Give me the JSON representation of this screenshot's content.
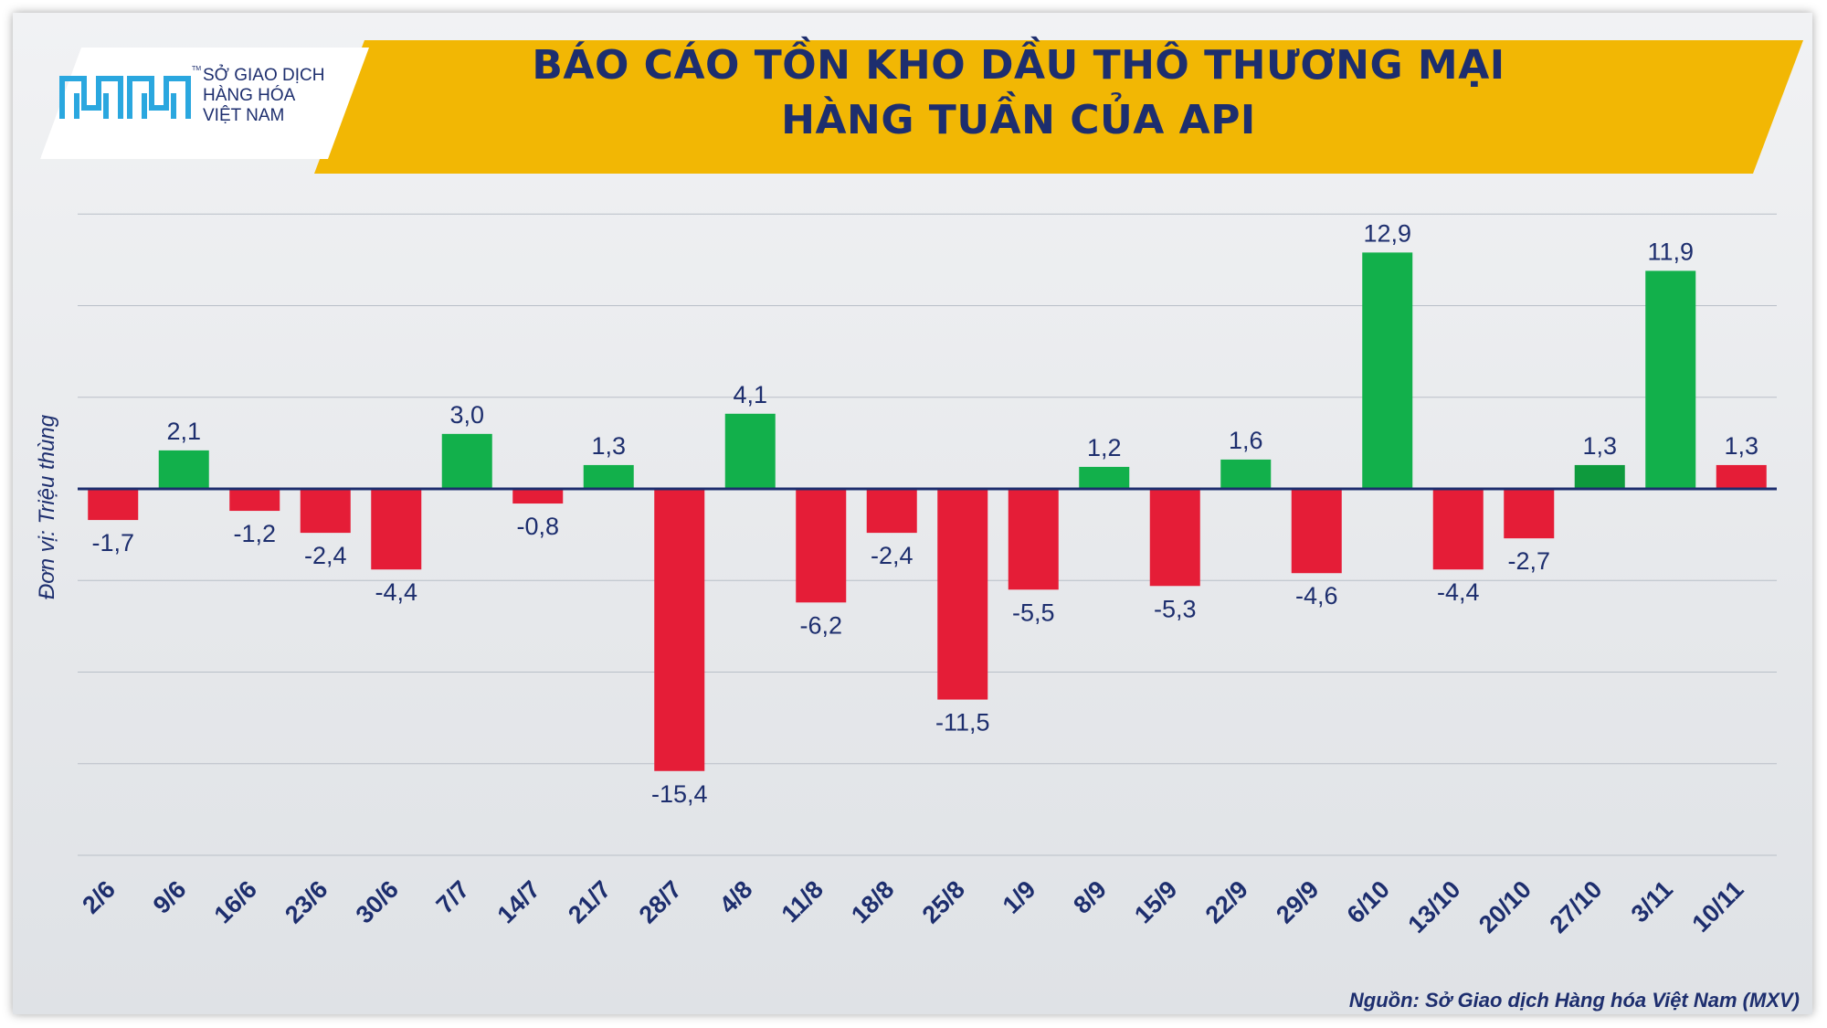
{
  "header": {
    "logo_lines": [
      "SỞ GIAO DỊCH",
      "HÀNG HÓA",
      "VIỆT NAM"
    ],
    "logo_tm": "TM",
    "title_line1": "BÁO CÁO TỒN KHO DẦU THÔ THƯƠNG MẠI",
    "title_line2": "HÀNG TUẦN CỦA API"
  },
  "y_unit": "Đơn vị: Triệu thùng",
  "source": "Nguồn: Sở Giao dịch Hàng hóa Việt Nam (MXV)",
  "colors": {
    "positive": "#12b04b",
    "positive_dark": "#0e9a3d",
    "negative": "#e51d37",
    "last_bar": "#e51d37",
    "title_bg": "#f2b704",
    "title_text": "#1d2e6e",
    "axis": "#1d2e6e"
  },
  "chart_data": {
    "type": "bar",
    "categories": [
      "2/6",
      "9/6",
      "16/6",
      "23/6",
      "30/6",
      "7/7",
      "14/7",
      "21/7",
      "28/7",
      "4/8",
      "11/8",
      "18/8",
      "25/8",
      "1/9",
      "8/9",
      "15/9",
      "22/9",
      "29/9",
      "6/10",
      "13/10",
      "20/10",
      "27/10",
      "3/11",
      "10/11"
    ],
    "values": [
      -1.7,
      2.1,
      -1.2,
      -2.4,
      -4.4,
      3.0,
      -0.8,
      1.3,
      -15.4,
      4.1,
      -6.2,
      -2.4,
      -11.5,
      -5.5,
      1.2,
      -5.3,
      1.6,
      -4.6,
      12.9,
      -4.4,
      -2.7,
      1.3,
      11.9,
      1.3
    ],
    "labels": [
      "-1,7",
      "2,1",
      "-1,2",
      "-2,4",
      "-4,4",
      "3,0",
      "-0,8",
      "1,3",
      "-15,4",
      "4,1",
      "-6,2",
      "-2,4",
      "-11,5",
      "-5,5",
      "1,2",
      "-5,3",
      "1,6",
      "-4,6",
      "12,9",
      "-4,4",
      "-2,7",
      "1,3",
      "11,9",
      "1,3"
    ],
    "ylabel": "Đơn vị: Triệu thùng",
    "ylim": [
      -20,
      15
    ],
    "gridlines": [
      -20,
      -15,
      -10,
      -5,
      5,
      10,
      15
    ],
    "grid": true,
    "legend": false
  }
}
